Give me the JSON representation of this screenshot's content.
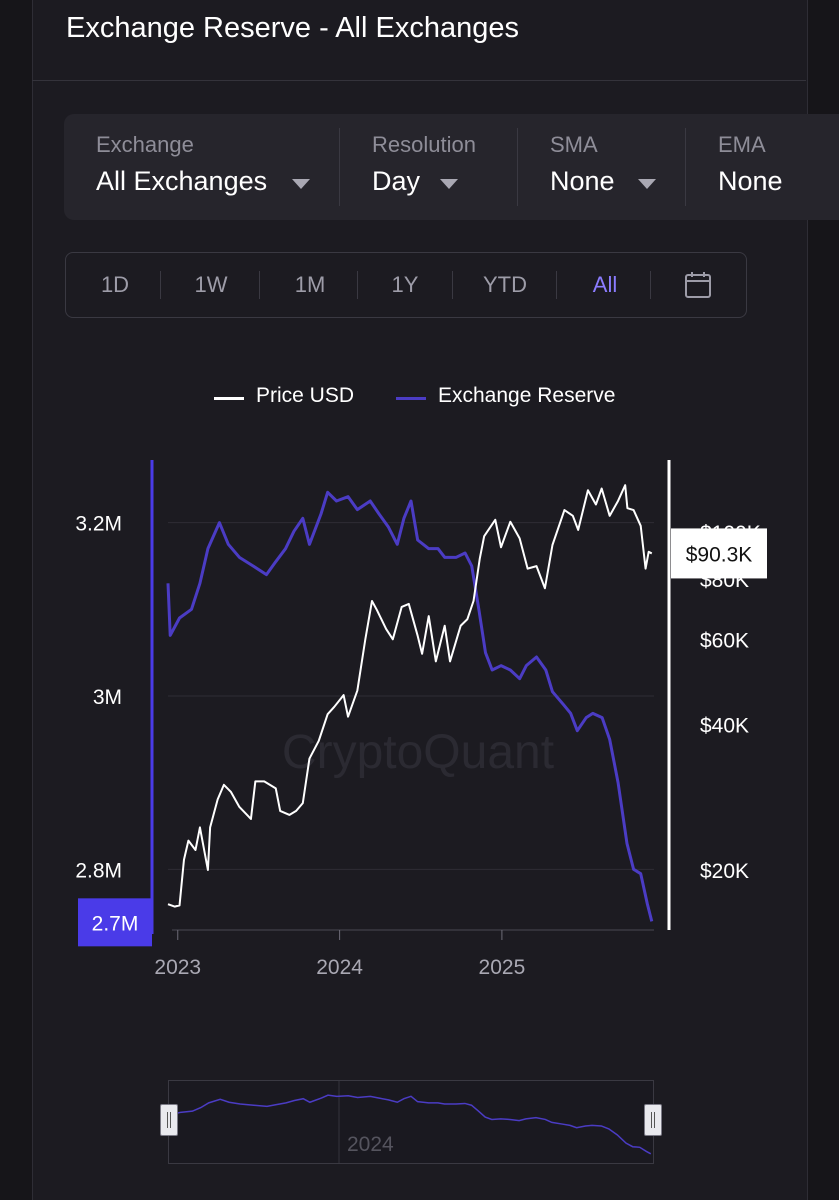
{
  "header": {
    "title": "Exchange Reserve - All Exchanges"
  },
  "filters": [
    {
      "label": "Exchange",
      "value": "All Exchanges",
      "has_caret": true
    },
    {
      "label": "Resolution",
      "value": "Day",
      "has_caret": true
    },
    {
      "label": "SMA",
      "value": "None",
      "has_caret": true
    },
    {
      "label": "EMA",
      "value": "None",
      "has_caret": false
    }
  ],
  "ranges": {
    "items": [
      "1D",
      "1W",
      "1M",
      "1Y",
      "YTD",
      "All"
    ],
    "active": "All",
    "calendar_icon": "calendar-icon"
  },
  "legend": {
    "price": "Price USD",
    "reserve": "Exchange Reserve"
  },
  "colors": {
    "price": "#ffffff",
    "reserve": "#4b3cc4",
    "reserve_badge": "#4a3be8",
    "background": "#1c1b21"
  },
  "watermark": "CryptoQuant",
  "chart_data": {
    "type": "line",
    "x_ticks": [
      "2023",
      "2024",
      "2025"
    ],
    "y_left": {
      "ticks": [
        "3.2M",
        "3M",
        "2.8M"
      ],
      "tick_values": [
        3200000,
        3000000,
        2800000
      ],
      "range": [
        2730000,
        3270000
      ],
      "current_label": "2.7M"
    },
    "y_right": {
      "ticks": [
        "$100K",
        "$80K",
        "$60K",
        "$40K",
        "$20K"
      ],
      "tick_values": [
        100000,
        80000,
        60000,
        40000,
        20000
      ],
      "scale": "log",
      "current_label": "$90.3K"
    },
    "x_range": [
      "2022-12-10",
      "2025-12-10"
    ],
    "series": [
      {
        "name": "Exchange Reserve",
        "axis": "left",
        "points": [
          [
            "2022-12-10",
            3130000
          ],
          [
            "2022-12-15",
            3070000
          ],
          [
            "2023-01-05",
            3090000
          ],
          [
            "2023-02-01",
            3100000
          ],
          [
            "2023-02-20",
            3130000
          ],
          [
            "2023-03-10",
            3170000
          ],
          [
            "2023-04-05",
            3200000
          ],
          [
            "2023-04-25",
            3175000
          ],
          [
            "2023-05-20",
            3160000
          ],
          [
            "2023-06-20",
            3150000
          ],
          [
            "2023-07-20",
            3140000
          ],
          [
            "2023-08-10",
            3155000
          ],
          [
            "2023-09-01",
            3170000
          ],
          [
            "2023-09-20",
            3190000
          ],
          [
            "2023-10-10",
            3205000
          ],
          [
            "2023-10-25",
            3175000
          ],
          [
            "2023-11-20",
            3210000
          ],
          [
            "2023-12-05",
            3235000
          ],
          [
            "2023-12-25",
            3225000
          ],
          [
            "2024-01-20",
            3230000
          ],
          [
            "2024-02-10",
            3215000
          ],
          [
            "2024-03-10",
            3225000
          ],
          [
            "2024-03-30",
            3210000
          ],
          [
            "2024-04-20",
            3195000
          ],
          [
            "2024-05-10",
            3175000
          ],
          [
            "2024-05-25",
            3205000
          ],
          [
            "2024-06-10",
            3225000
          ],
          [
            "2024-06-25",
            3180000
          ],
          [
            "2024-07-20",
            3170000
          ],
          [
            "2024-08-10",
            3170000
          ],
          [
            "2024-08-25",
            3160000
          ],
          [
            "2024-09-20",
            3160000
          ],
          [
            "2024-10-10",
            3165000
          ],
          [
            "2024-10-25",
            3150000
          ],
          [
            "2024-11-10",
            3100000
          ],
          [
            "2024-11-25",
            3050000
          ],
          [
            "2024-12-10",
            3030000
          ],
          [
            "2024-12-30",
            3035000
          ],
          [
            "2025-01-20",
            3030000
          ],
          [
            "2025-02-10",
            3020000
          ],
          [
            "2025-02-25",
            3035000
          ],
          [
            "2025-03-20",
            3045000
          ],
          [
            "2025-04-10",
            3030000
          ],
          [
            "2025-04-25",
            3005000
          ],
          [
            "2025-05-20",
            2990000
          ],
          [
            "2025-06-05",
            2980000
          ],
          [
            "2025-06-20",
            2960000
          ],
          [
            "2025-07-10",
            2975000
          ],
          [
            "2025-07-25",
            2980000
          ],
          [
            "2025-08-15",
            2975000
          ],
          [
            "2025-09-01",
            2950000
          ],
          [
            "2025-09-20",
            2900000
          ],
          [
            "2025-10-10",
            2830000
          ],
          [
            "2025-10-25",
            2800000
          ],
          [
            "2025-11-10",
            2795000
          ],
          [
            "2025-11-25",
            2760000
          ],
          [
            "2025-12-05",
            2740000
          ]
        ]
      },
      {
        "name": "Price USD",
        "axis": "right",
        "points": [
          [
            "2022-12-10",
            17000
          ],
          [
            "2022-12-25",
            16800
          ],
          [
            "2023-01-05",
            16900
          ],
          [
            "2023-01-15",
            21000
          ],
          [
            "2023-01-25",
            23000
          ],
          [
            "2023-02-10",
            22000
          ],
          [
            "2023-02-20",
            24500
          ],
          [
            "2023-03-10",
            20000
          ],
          [
            "2023-03-15",
            24500
          ],
          [
            "2023-04-01",
            28000
          ],
          [
            "2023-04-15",
            30000
          ],
          [
            "2023-05-01",
            29000
          ],
          [
            "2023-05-20",
            27000
          ],
          [
            "2023-06-15",
            25500
          ],
          [
            "2023-06-25",
            30500
          ],
          [
            "2023-07-15",
            30500
          ],
          [
            "2023-08-10",
            29500
          ],
          [
            "2023-08-20",
            26500
          ],
          [
            "2023-09-10",
            26000
          ],
          [
            "2023-09-25",
            26500
          ],
          [
            "2023-10-10",
            27500
          ],
          [
            "2023-10-25",
            34000
          ],
          [
            "2023-11-15",
            37000
          ],
          [
            "2023-12-05",
            42000
          ],
          [
            "2023-12-20",
            43500
          ],
          [
            "2024-01-10",
            46000
          ],
          [
            "2024-01-20",
            41500
          ],
          [
            "2024-02-10",
            47000
          ],
          [
            "2024-02-28",
            60000
          ],
          [
            "2024-03-14",
            72000
          ],
          [
            "2024-03-25",
            69000
          ],
          [
            "2024-04-15",
            63000
          ],
          [
            "2024-04-30",
            60000
          ],
          [
            "2024-05-20",
            70000
          ],
          [
            "2024-06-05",
            71000
          ],
          [
            "2024-06-25",
            61000
          ],
          [
            "2024-07-05",
            56000
          ],
          [
            "2024-07-20",
            67000
          ],
          [
            "2024-08-05",
            54000
          ],
          [
            "2024-08-25",
            64000
          ],
          [
            "2024-09-06",
            54000
          ],
          [
            "2024-09-30",
            64000
          ],
          [
            "2024-10-15",
            66000
          ],
          [
            "2024-10-29",
            72000
          ],
          [
            "2024-11-12",
            88000
          ],
          [
            "2024-11-22",
            98000
          ],
          [
            "2024-12-17",
            106000
          ],
          [
            "2024-12-30",
            93000
          ],
          [
            "2025-01-20",
            105000
          ],
          [
            "2025-02-10",
            97000
          ],
          [
            "2025-02-28",
            84000
          ],
          [
            "2025-03-20",
            85000
          ],
          [
            "2025-04-08",
            76500
          ],
          [
            "2025-04-25",
            94000
          ],
          [
            "2025-05-22",
            111000
          ],
          [
            "2025-06-10",
            108000
          ],
          [
            "2025-06-22",
            101000
          ],
          [
            "2025-07-14",
            122000
          ],
          [
            "2025-08-01",
            114000
          ],
          [
            "2025-08-14",
            123000
          ],
          [
            "2025-09-01",
            108000
          ],
          [
            "2025-09-20",
            116000
          ],
          [
            "2025-10-06",
            125000
          ],
          [
            "2025-10-11",
            112000
          ],
          [
            "2025-10-25",
            111000
          ],
          [
            "2025-11-10",
            103000
          ],
          [
            "2025-11-21",
            84000
          ],
          [
            "2025-11-28",
            91000
          ],
          [
            "2025-12-05",
            90300
          ]
        ]
      }
    ],
    "navigator": {
      "label": "2024"
    }
  }
}
